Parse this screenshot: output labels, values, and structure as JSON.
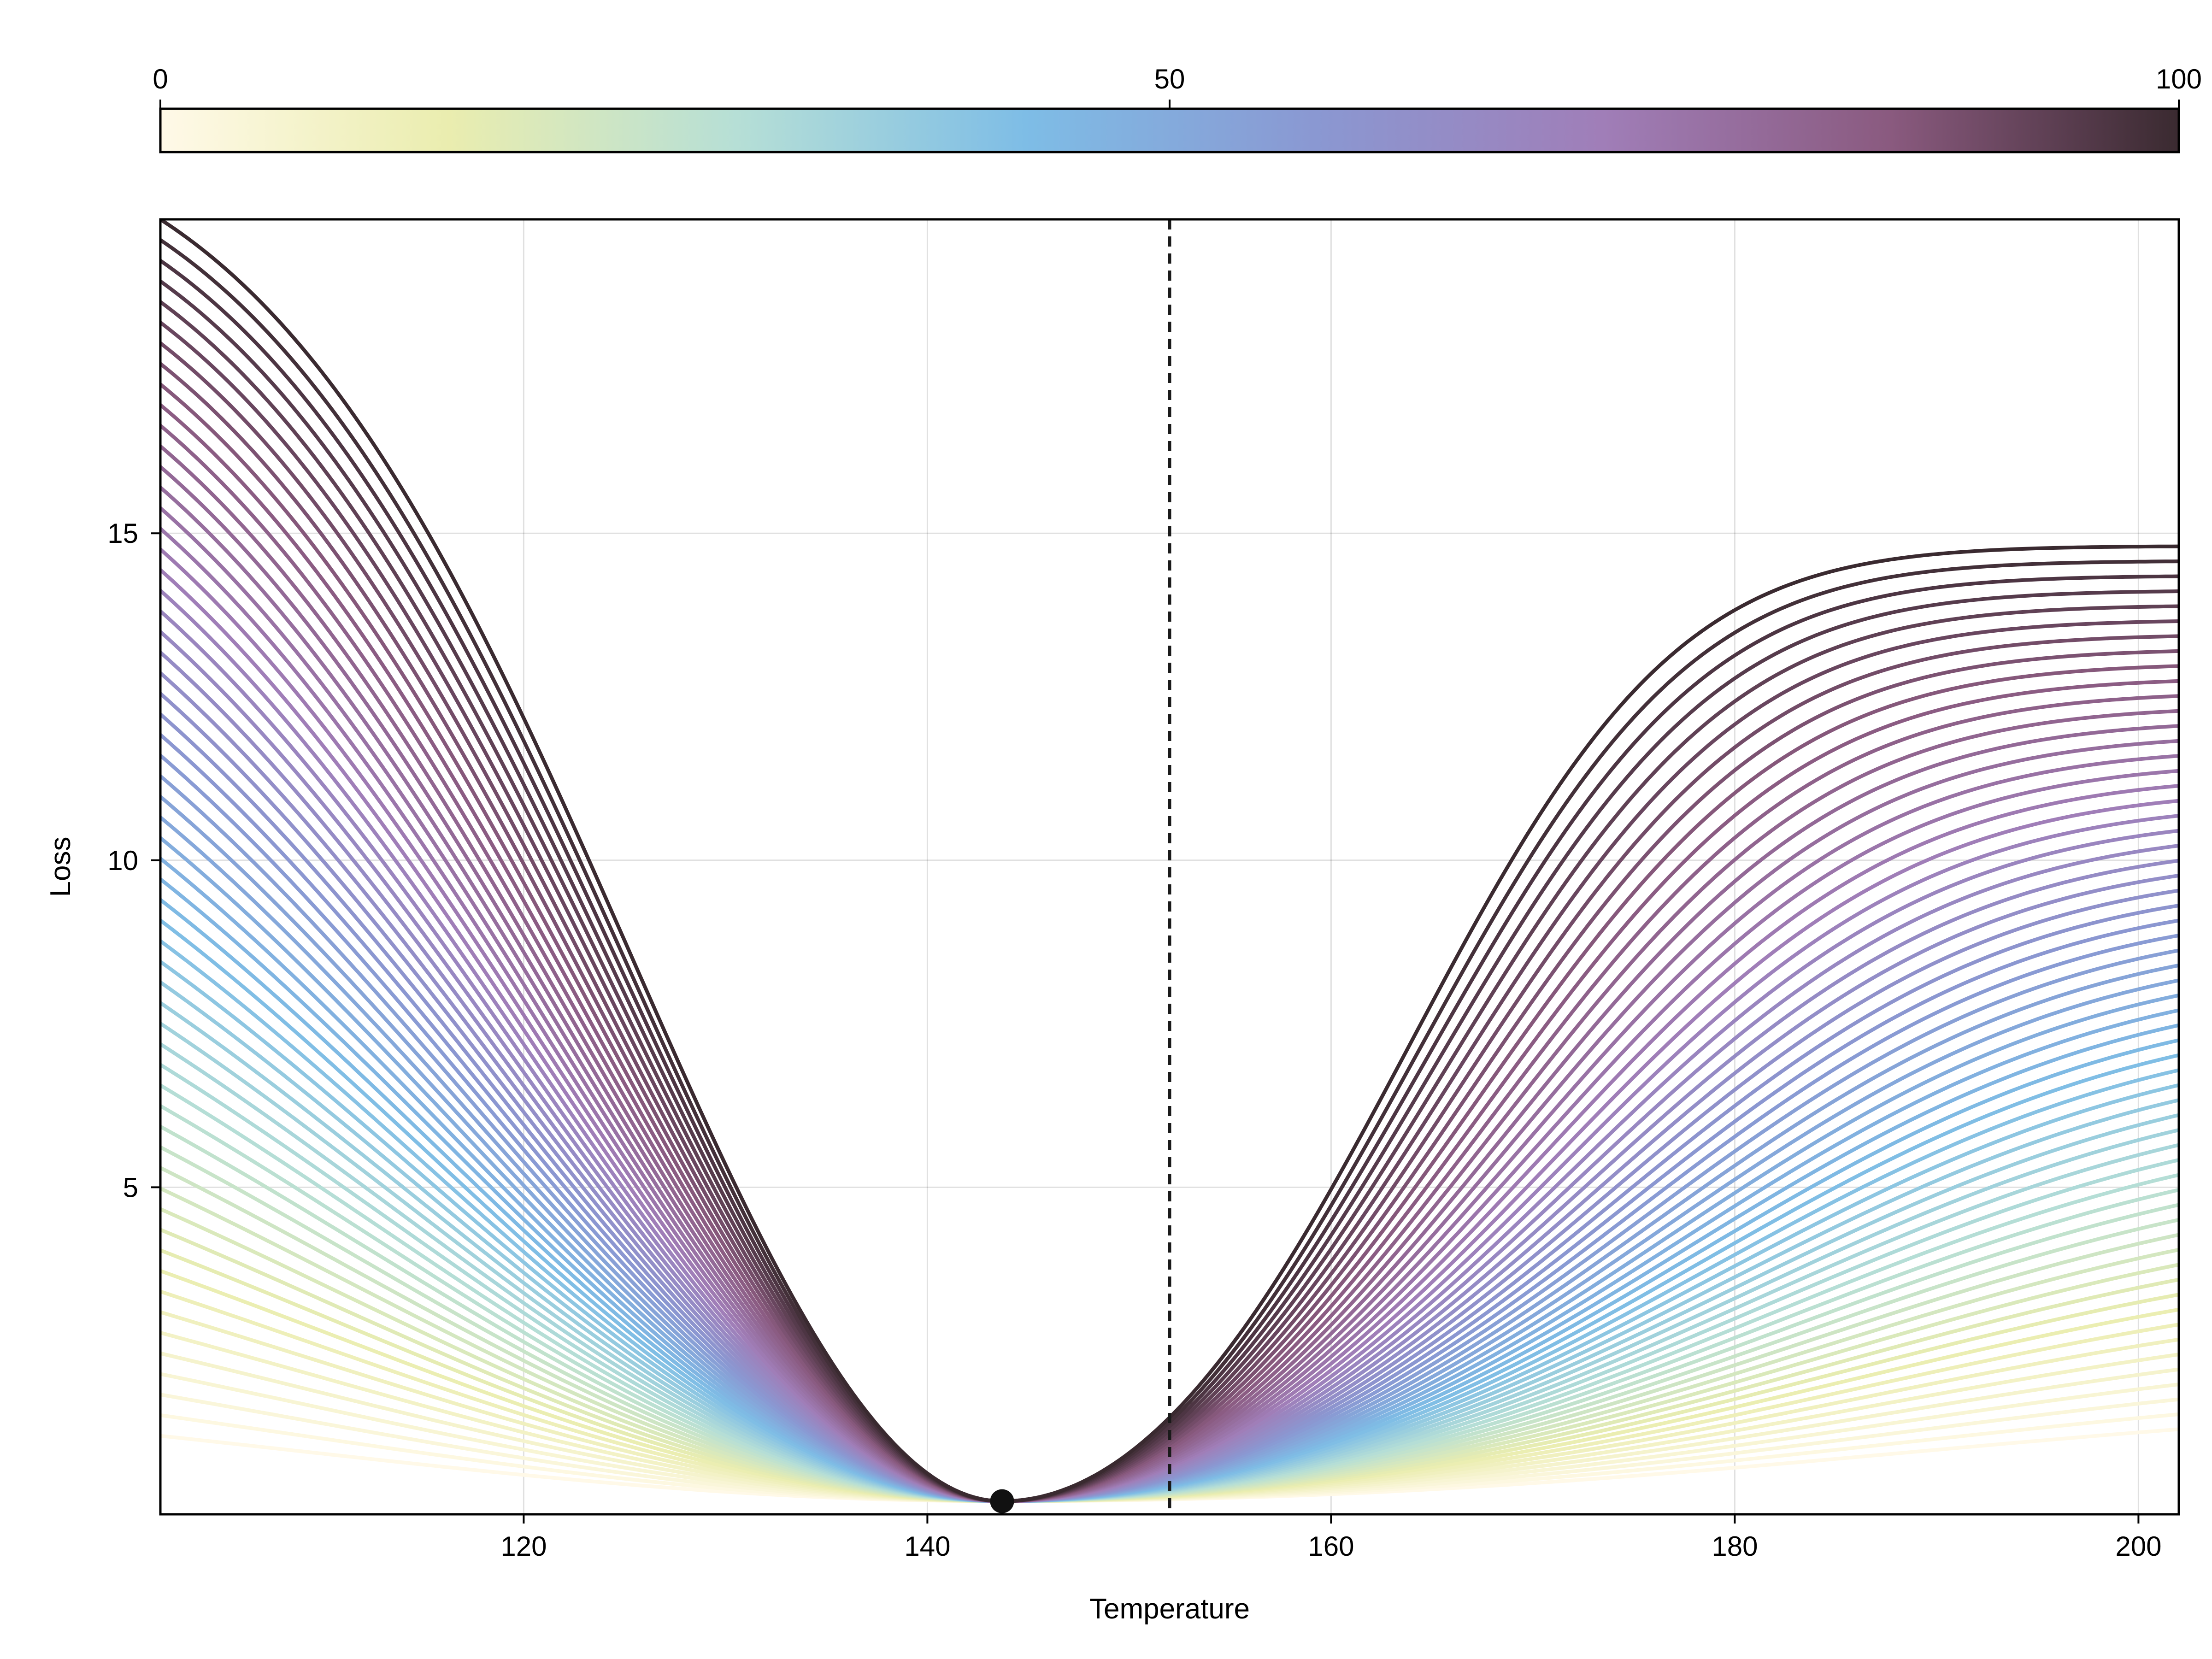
{
  "chart_data": {
    "type": "line",
    "title": "",
    "xlabel": "Temperature",
    "ylabel": "Loss",
    "xlim": [
      102,
      202
    ],
    "ylim": [
      0,
      19.8
    ],
    "x_ticks": [
      120,
      140,
      160,
      180,
      200
    ],
    "y_ticks": [
      5,
      10,
      15
    ],
    "grid": true,
    "legend": "none",
    "colorbar": {
      "position": "top",
      "range": [
        0,
        100
      ],
      "ticks": [
        0,
        50,
        100
      ],
      "colors": [
        "#fff9e8",
        "#eaedaf",
        "#b6dfd6",
        "#7ebde6",
        "#8a98d2",
        "#a07eb8",
        "#8a5a7f",
        "#3a2a30"
      ]
    },
    "reference_line": {
      "x": 152,
      "style": "dashed",
      "color": "#1a1a1a"
    },
    "min_point": {
      "x": 143.7,
      "y": 0.2
    },
    "series_parameter": {
      "name": "",
      "values_from": 0,
      "values_to": 100,
      "count": 60
    },
    "series_family": {
      "x_min": 102,
      "x_max": 202,
      "x_minimum": 143.7,
      "y_minimum": 0.2,
      "left_end_values": {
        "parameter_0": 1.2,
        "parameter_100": 19.8
      },
      "right_end_values": {
        "parameter_0": 1.3,
        "parameter_100": 14.8
      }
    }
  }
}
